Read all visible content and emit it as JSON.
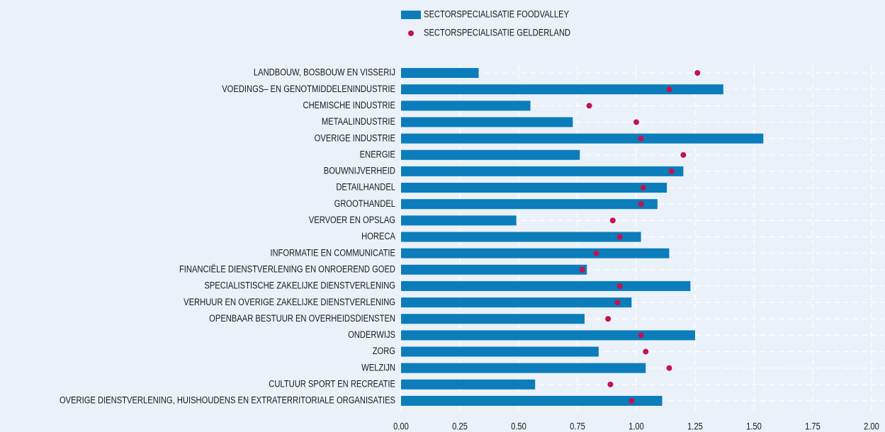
{
  "chart_data": {
    "type": "bar",
    "orientation": "horizontal",
    "categories": [
      "LANDBOUW, BOSBOUW EN VISSERIJ",
      "VOEDINGS– EN GENOTMIDDELENINDUSTRIE",
      "CHEMISCHE INDUSTRIE",
      "METAALINDUSTRIE",
      "OVERIGE INDUSTRIE",
      "ENERGIE",
      "BOUWNIJVERHEID",
      "DETAILHANDEL",
      "GROOTHANDEL",
      "VERVOER EN OPSLAG",
      "HORECA",
      "INFORMATIE EN COMMUNICATIE",
      "FINANCIËLE DIENSTVERLENING EN ONROEREND GOED",
      "SPECIALISTISCHE ZAKELIJKE DIENSTVERLENING",
      "VERHUUR EN OVERIGE ZAKELIJKE DIENSTVERLENING",
      "OPENBAAR BESTUUR EN OVERHEIDSDIENSTEN",
      "ONDERWIJS",
      "ZORG",
      "WELZIJN",
      "CULTUUR SPORT EN RECREATIE",
      "OVERIGE DIENSTVERLENING, HUISHOUDENS EN EXTRATERRITORIALE ORGANISATIES"
    ],
    "series": [
      {
        "name": "SECTORSPECIALISATIE FOODVALLEY",
        "color": "#0b7dbb",
        "marker": "bar",
        "values": [
          0.33,
          1.37,
          0.55,
          0.73,
          1.54,
          0.76,
          1.2,
          1.13,
          1.09,
          0.49,
          1.02,
          1.14,
          0.79,
          1.23,
          0.98,
          0.78,
          1.25,
          0.84,
          1.04,
          0.57,
          1.11
        ]
      },
      {
        "name": "SECTORSPECIALISATIE GELDERLAND",
        "color": "#c4124f",
        "marker": "dot",
        "values": [
          1.26,
          1.14,
          0.8,
          1.0,
          1.02,
          1.2,
          1.15,
          1.03,
          1.02,
          0.9,
          0.93,
          0.83,
          0.77,
          0.93,
          0.92,
          0.88,
          1.02,
          1.04,
          1.14,
          0.89,
          0.98
        ]
      }
    ],
    "xlim": [
      0,
      2
    ],
    "xticks": [
      {
        "value": 0,
        "label": "0.00"
      },
      {
        "value": 0.25,
        "label": "0.25"
      },
      {
        "value": 0.5,
        "label": "0.50"
      },
      {
        "value": 0.75,
        "label": "0.75"
      },
      {
        "value": 1,
        "label": "1.00"
      },
      {
        "value": 1.25,
        "label": "1.25"
      },
      {
        "value": 1.5,
        "label": "1.50"
      },
      {
        "value": 1.75,
        "label": "1.75"
      },
      {
        "value": 2,
        "label": "2.00"
      }
    ],
    "grid": true,
    "legend": "top"
  }
}
